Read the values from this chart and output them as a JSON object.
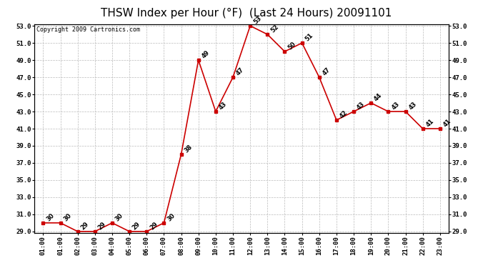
{
  "title": "THSW Index per Hour (°F)  (Last 24 Hours) 20091101",
  "copyright": "Copyright 2009 Cartronics.com",
  "hours": [
    "01:00",
    "01:00",
    "02:00",
    "03:00",
    "04:00",
    "05:00",
    "06:00",
    "07:00",
    "08:00",
    "09:00",
    "10:00",
    "11:00",
    "12:00",
    "13:00",
    "14:00",
    "15:00",
    "16:00",
    "17:00",
    "18:00",
    "19:00",
    "20:00",
    "21:00",
    "22:00",
    "23:00"
  ],
  "values": [
    30,
    30,
    29,
    29,
    30,
    29,
    29,
    30,
    38,
    49,
    43,
    47,
    53,
    52,
    50,
    51,
    47,
    42,
    43,
    44,
    43,
    43,
    41,
    41
  ],
  "ylim_min": 29.0,
  "ylim_max": 53.0,
  "ytick_step": 2.0,
  "line_color": "#cc0000",
  "marker_color": "#cc0000",
  "bg_color": "#ffffff",
  "grid_color": "#bbbbbb",
  "title_fontsize": 11,
  "label_fontsize": 6.5,
  "annot_fontsize": 6,
  "copyright_fontsize": 6
}
